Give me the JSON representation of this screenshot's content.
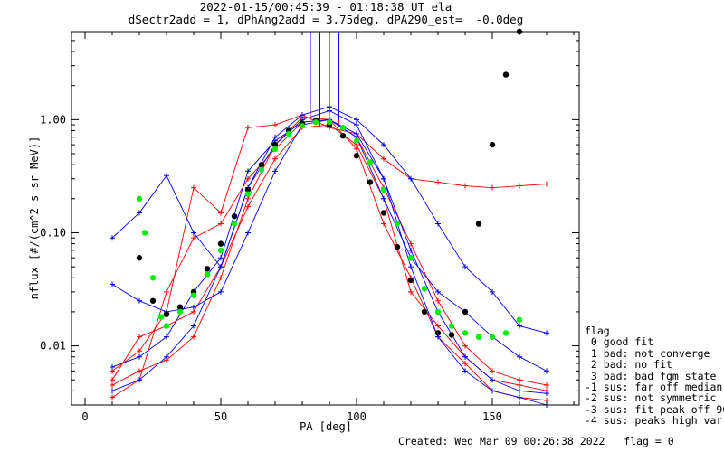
{
  "header": {
    "title_line1": "2022-01-15/00:45:39 - 01:18:38 UT ela",
    "title_line2": "dSectr2add = 1, dPhAng2add = 3.75deg, dPA290_est=  -0.0deg"
  },
  "legend": {
    "title": "flag",
    "items": [
      " 0 good fit",
      " 1 bad: not converge",
      " 2 bad: no fit",
      " 3 bad: bad fgm state",
      "-1 sus: far off median",
      "-2 sus: not symmetric",
      "-3 sus: fit peak off 90",
      "-4 sus: peaks high var"
    ]
  },
  "footer": {
    "created": "Created: Wed Mar 09 00:26:38 2022",
    "flag": "flag = 0"
  },
  "colors": {
    "red_series": "#ff0000",
    "blue_series": "#0000ff",
    "green_fit": "#00ee00",
    "black_fit": "#000000"
  },
  "chart_data": {
    "type": "line",
    "xlabel": "PA [deg]",
    "ylabel": "nflux [#/(cm^2 s sr MeV)]",
    "xlim": [
      -5,
      182
    ],
    "ylim": [
      0.003,
      6.0
    ],
    "yscale": "log",
    "x_ticks": [
      0,
      50,
      100,
      150
    ],
    "y_ticks": [
      {
        "value": 0.01,
        "label": "0.01"
      },
      {
        "value": 0.1,
        "label": "0.10"
      },
      {
        "value": 1.0,
        "label": "1.00"
      }
    ],
    "x_tick_labels": [
      "0",
      "50",
      "100",
      "150"
    ],
    "red_sample_series": [
      {
        "x": [
          10,
          20,
          30,
          40,
          50,
          60,
          70,
          80,
          90,
          100,
          110,
          120,
          130,
          140,
          150,
          160,
          170
        ],
        "y": [
          0.0045,
          0.006,
          0.0075,
          0.012,
          0.04,
          0.2,
          0.6,
          1.05,
          1.0,
          0.7,
          0.25,
          0.08,
          0.025,
          0.01,
          0.006,
          0.005,
          0.0045
        ]
      },
      {
        "x": [
          10,
          20,
          30,
          40,
          50,
          60,
          70,
          80,
          90,
          100,
          110,
          120,
          130,
          140,
          150,
          160,
          170
        ],
        "y": [
          0.006,
          0.009,
          0.02,
          0.25,
          0.15,
          0.85,
          0.9,
          1.1,
          0.85,
          0.75,
          0.45,
          0.3,
          0.28,
          0.26,
          0.25,
          0.26,
          0.27
        ]
      },
      {
        "x": [
          10,
          20,
          30,
          40,
          50,
          60,
          70,
          80,
          90,
          100,
          110,
          120,
          130,
          140,
          150,
          160,
          170
        ],
        "y": [
          0.0035,
          0.005,
          0.03,
          0.09,
          0.12,
          0.3,
          0.55,
          0.95,
          1.0,
          0.55,
          0.12,
          0.04,
          0.012,
          0.007,
          0.004,
          0.0035,
          0.0033
        ]
      },
      {
        "x": [
          10,
          20,
          30,
          40,
          50,
          60,
          70,
          80,
          90,
          100,
          110,
          120,
          130,
          140,
          150,
          160,
          170
        ],
        "y": [
          0.005,
          0.012,
          0.015,
          0.02,
          0.05,
          0.17,
          0.45,
          0.85,
          0.9,
          0.6,
          0.2,
          0.03,
          0.015,
          0.008,
          0.005,
          0.0045,
          0.004
        ]
      }
    ],
    "blue_sample_series": [
      {
        "x": [
          10,
          20,
          30,
          40,
          50,
          60,
          70,
          80,
          90,
          100,
          110,
          120,
          130,
          140,
          150,
          160,
          170
        ],
        "y": [
          0.09,
          0.15,
          0.32,
          0.1,
          0.05,
          0.25,
          0.6,
          1.0,
          1.2,
          0.9,
          0.3,
          0.05,
          0.012,
          0.006,
          0.004,
          0.0035,
          0.003
        ]
      },
      {
        "x": [
          10,
          20,
          30,
          40,
          50,
          60,
          70,
          80,
          90,
          100,
          110,
          120,
          130,
          140,
          150,
          160,
          170
        ],
        "y": [
          0.035,
          0.025,
          0.02,
          0.022,
          0.03,
          0.1,
          0.35,
          0.9,
          1.0,
          0.7,
          0.2,
          0.06,
          0.03,
          0.02,
          0.012,
          0.008,
          0.006
        ]
      },
      {
        "x": [
          10,
          20,
          30,
          40,
          50,
          60,
          70,
          80,
          90,
          100,
          110,
          120,
          130,
          140,
          150,
          160,
          170
        ],
        "y": [
          0.004,
          0.005,
          0.008,
          0.015,
          0.05,
          0.25,
          0.7,
          1.1,
          1.3,
          1.0,
          0.6,
          0.3,
          0.12,
          0.05,
          0.03,
          0.015,
          0.013
        ]
      },
      {
        "x": [
          10,
          20,
          30,
          40,
          50,
          60,
          70,
          80,
          90,
          100,
          110,
          120,
          130,
          140,
          150,
          160,
          170
        ],
        "y": [
          0.0065,
          0.008,
          0.012,
          0.03,
          0.06,
          0.35,
          0.65,
          0.95,
          1.0,
          0.75,
          0.3,
          0.07,
          0.02,
          0.008,
          0.005,
          0.004,
          0.0038
        ]
      }
    ],
    "black_fit_curve": {
      "x": [
        20,
        25,
        30,
        35,
        40,
        45,
        50,
        55,
        60,
        65,
        70,
        75,
        80,
        85,
        90,
        95,
        100,
        105,
        110,
        115,
        120,
        125,
        130,
        135,
        140,
        145,
        150,
        155,
        160
      ],
      "y": [
        0.06,
        0.025,
        0.019,
        0.022,
        0.03,
        0.048,
        0.08,
        0.14,
        0.24,
        0.4,
        0.6,
        0.8,
        0.93,
        0.98,
        0.9,
        0.72,
        0.48,
        0.28,
        0.15,
        0.075,
        0.038,
        0.02,
        0.013,
        0.0125,
        0.02,
        0.12,
        0.6,
        2.5,
        6.0
      ]
    },
    "green_fit_curve": {
      "x": [
        20,
        22,
        25,
        28,
        30,
        35,
        40,
        45,
        50,
        55,
        60,
        65,
        70,
        75,
        80,
        85,
        90,
        95,
        100,
        105,
        110,
        115,
        120,
        125,
        130,
        135,
        140,
        145,
        150,
        155,
        160
      ],
      "y": [
        0.2,
        0.1,
        0.04,
        0.018,
        0.015,
        0.02,
        0.028,
        0.043,
        0.07,
        0.12,
        0.22,
        0.36,
        0.55,
        0.75,
        0.88,
        0.95,
        0.95,
        0.85,
        0.65,
        0.42,
        0.24,
        0.12,
        0.06,
        0.032,
        0.02,
        0.015,
        0.013,
        0.012,
        0.012,
        0.013,
        0.017
      ]
    }
  }
}
